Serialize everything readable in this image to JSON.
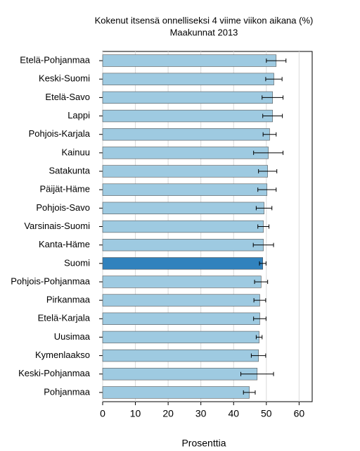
{
  "chart_data": {
    "type": "barh",
    "title": "Kokenut itsensä onnelliseksi 4 viime viikon aikana (%)",
    "subtitle": "Maakunnat 2013",
    "x_label": "Prosenttia",
    "categories": [
      "Etelä-Pohjanmaa",
      "Keski-Suomi",
      "Etelä-Savo",
      "Lappi",
      "Pohjois-Karjala",
      "Kainuu",
      "Satakunta",
      "Päijät-Häme",
      "Pohjois-Savo",
      "Varsinais-Suomi",
      "Kanta-Häme",
      "Suomi",
      "Pohjois-Pohjanmaa",
      "Pirkanmaa",
      "Etelä-Karjala",
      "Uusimaa",
      "Kymenlaakso",
      "Keski-Pohjanmaa",
      "Pohjanmaa"
    ],
    "values": [
      53.0,
      52.3,
      51.9,
      51.9,
      51.0,
      50.6,
      50.4,
      50.2,
      49.3,
      49.1,
      49.1,
      48.9,
      48.4,
      48.0,
      48.0,
      47.8,
      47.6,
      47.2,
      44.8
    ],
    "errors": [
      3.0,
      2.5,
      3.2,
      3.0,
      2.0,
      4.5,
      2.8,
      2.8,
      2.4,
      1.7,
      3.1,
      1.0,
      2.0,
      1.8,
      1.9,
      0.9,
      2.2,
      5.0,
      1.8
    ],
    "colors": [
      "#9ecae1",
      "#9ecae1",
      "#9ecae1",
      "#9ecae1",
      "#9ecae1",
      "#9ecae1",
      "#9ecae1",
      "#9ecae1",
      "#9ecae1",
      "#9ecae1",
      "#9ecae1",
      "#3182bd",
      "#9ecae1",
      "#9ecae1",
      "#9ecae1",
      "#9ecae1",
      "#9ecae1",
      "#9ecae1",
      "#9ecae1"
    ],
    "xlim": [
      0,
      64
    ],
    "xticks": [
      0,
      10,
      20,
      30,
      40,
      50,
      60
    ],
    "grid": true
  }
}
